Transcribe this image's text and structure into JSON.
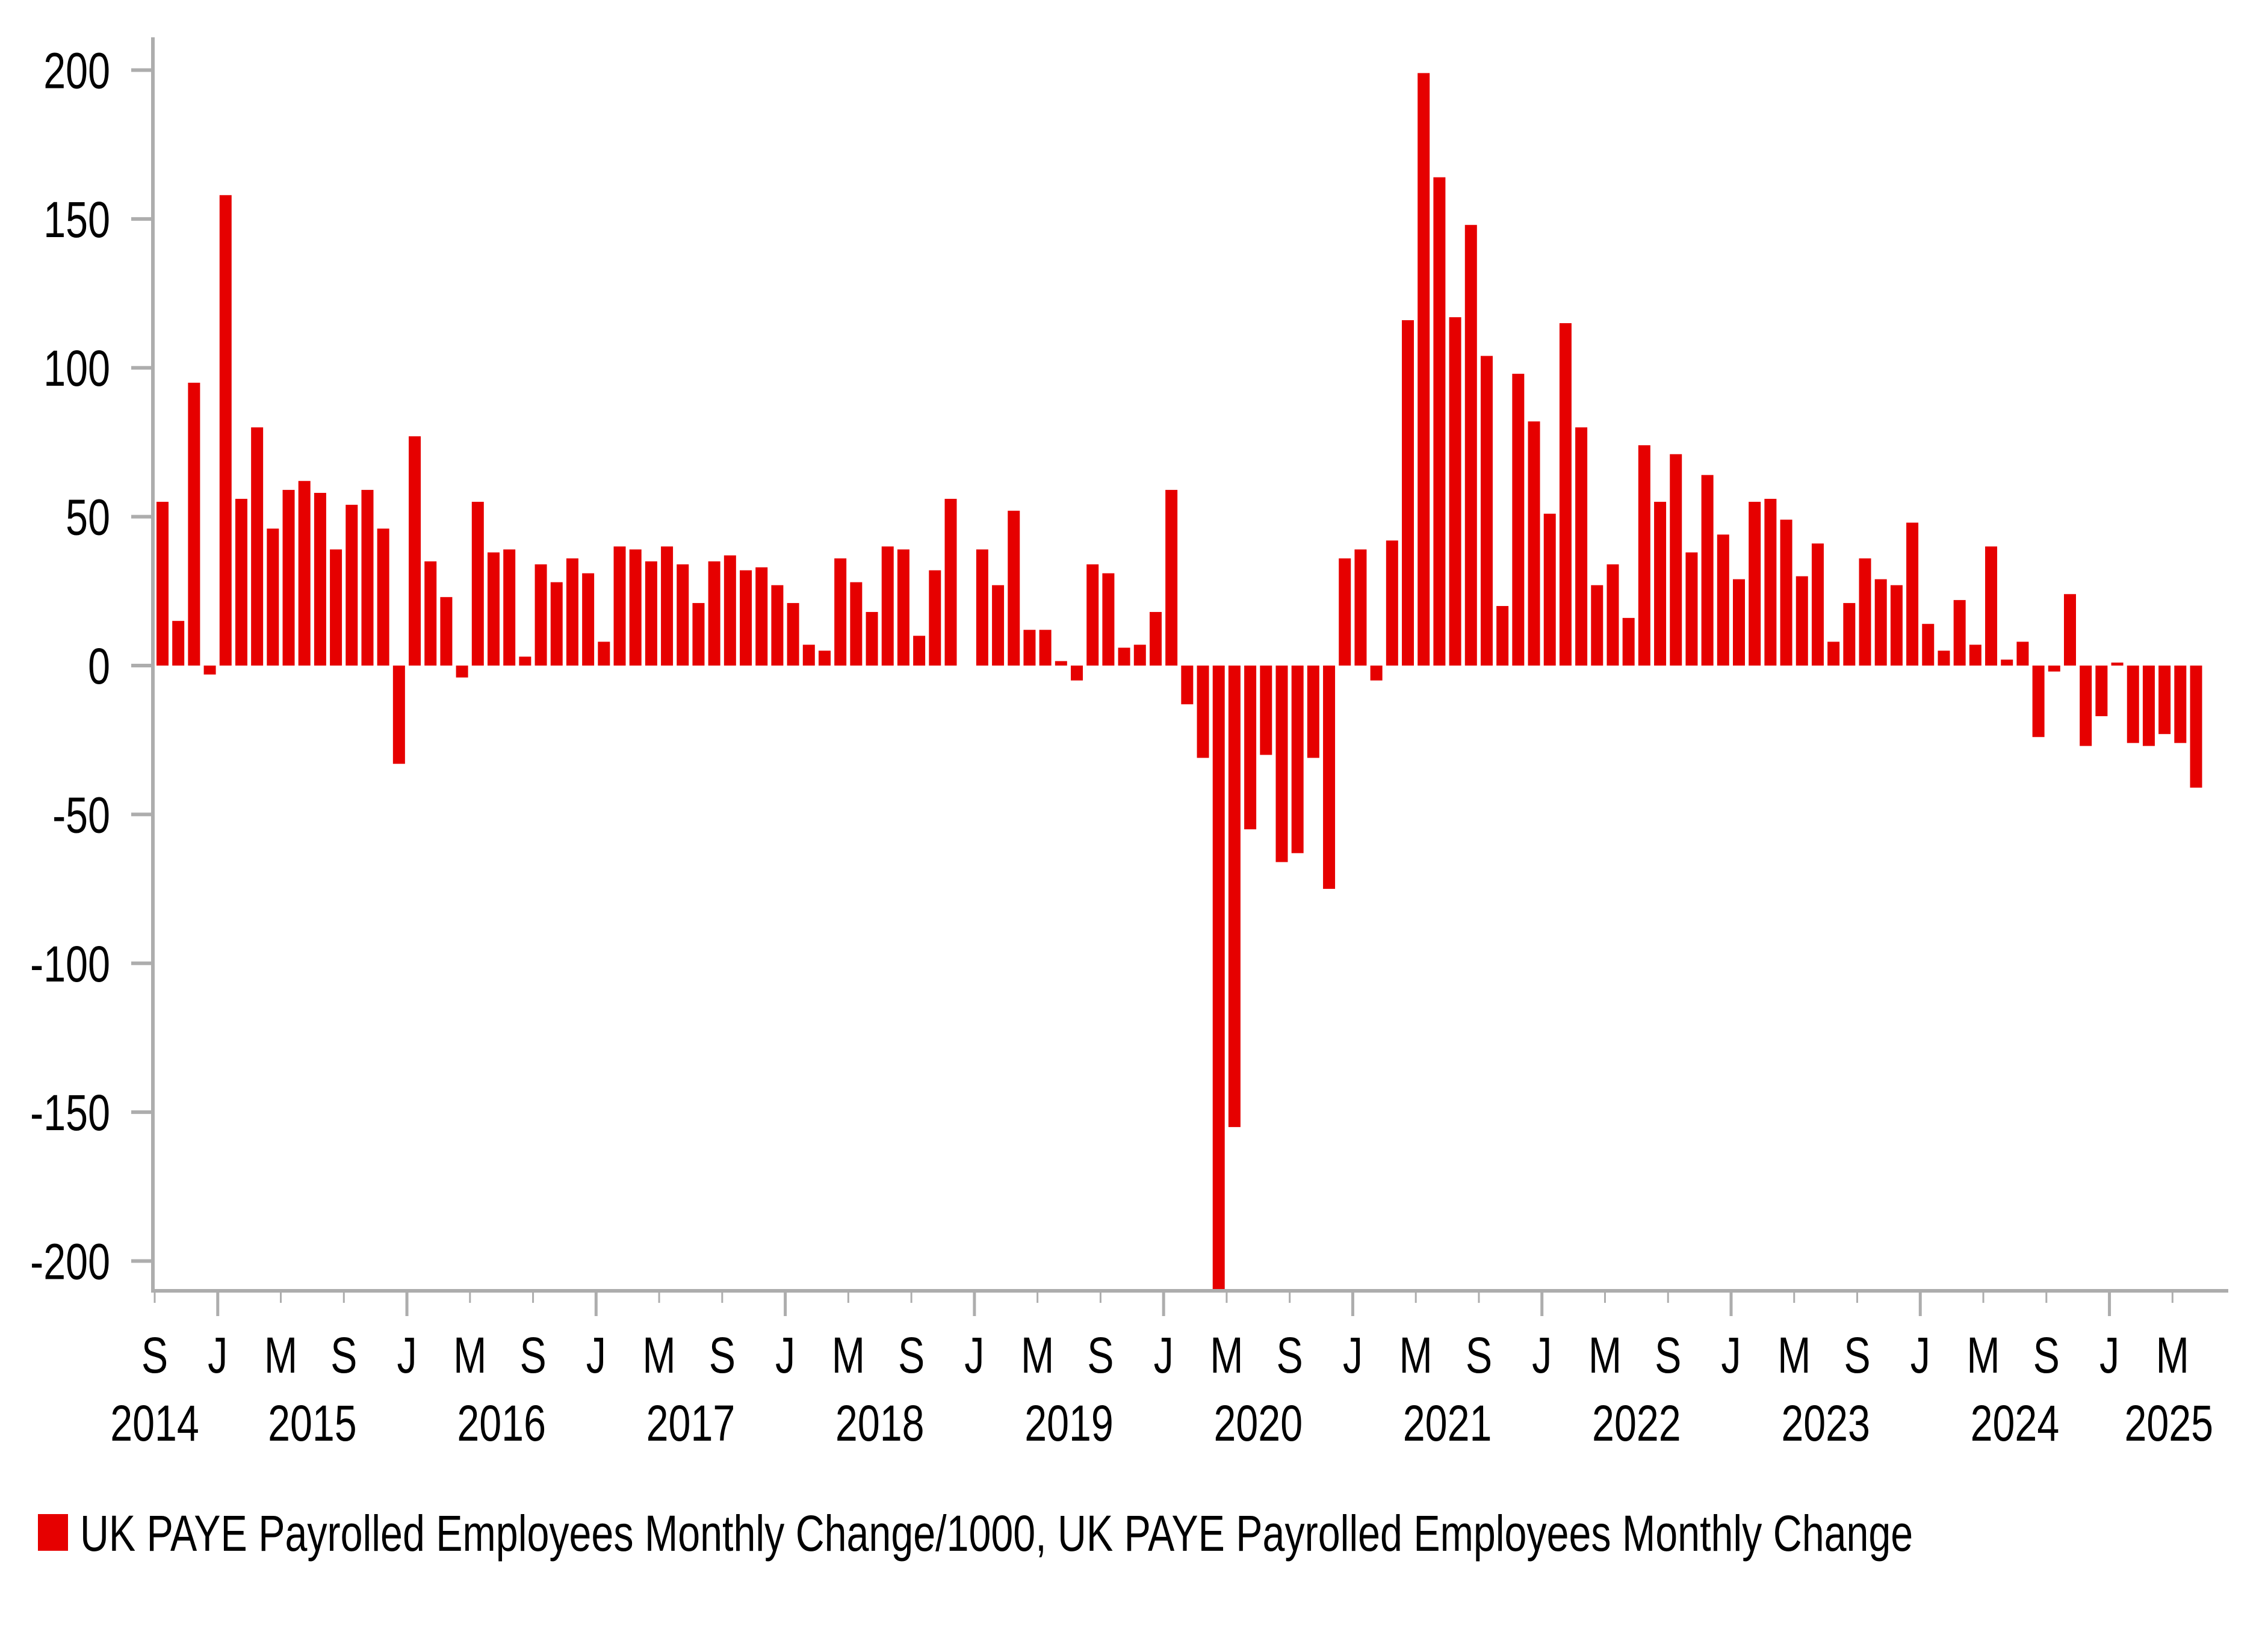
{
  "chart_data": {
    "type": "bar",
    "title": "",
    "xlabel": "",
    "ylabel": "",
    "x_start": "2014-09",
    "x_frequency": "monthly",
    "x_end": "2025-06",
    "ylim": [
      -210,
      210
    ],
    "yticks": [
      200,
      150,
      100,
      50,
      0,
      -50,
      -100,
      -150,
      -200
    ],
    "ytick_labels": [
      "200",
      "150",
      "100",
      "50",
      "0",
      "-50",
      "-100",
      "-150",
      "-200"
    ],
    "xtick_labels": [
      "S",
      "J",
      "M",
      "S",
      "J",
      "M",
      "S",
      "J",
      "M",
      "S",
      "J",
      "M",
      "S",
      "J",
      "M",
      "S",
      "J",
      "M",
      "S",
      "J",
      "M",
      "S",
      "J",
      "M",
      "S",
      "J",
      "M",
      "S",
      "J",
      "M",
      "S",
      "J",
      "M"
    ],
    "year_labels": [
      "2014",
      "2015",
      "2016",
      "2017",
      "2018",
      "2019",
      "2020",
      "2021",
      "2022",
      "2023",
      "2024",
      "2025"
    ],
    "grid": false,
    "legend_position": "bottom-left",
    "series": [
      {
        "name": "UK PAYE Payrolled Employees Monthly Change/1000, UK PAYE Payrolled Employees Monthly Change",
        "color": "#e60000",
        "values": [
          55,
          15,
          95,
          -3,
          158,
          56,
          80,
          46,
          59,
          62,
          58,
          39,
          54,
          59,
          46,
          -33,
          77,
          35,
          23,
          -4,
          55,
          38,
          39,
          3,
          34,
          28,
          36,
          31,
          8,
          40,
          39,
          35,
          40,
          34,
          21,
          35,
          37,
          32,
          33,
          27,
          21,
          7,
          5,
          36,
          28,
          18,
          40,
          39,
          10,
          32,
          56,
          0,
          39,
          27,
          52,
          12,
          12,
          1.5,
          -5,
          34,
          31,
          6,
          7,
          18,
          59,
          -13,
          -31,
          -210,
          -155,
          -55,
          -30,
          -66,
          -63,
          -31,
          -75,
          36,
          39,
          -5,
          42,
          116,
          199,
          164,
          117,
          148,
          104,
          20,
          98,
          82,
          51,
          115,
          80,
          27,
          34,
          16,
          74,
          55,
          71,
          38,
          64,
          44,
          29,
          55,
          56,
          49,
          30,
          41,
          8,
          21,
          36,
          29,
          27,
          48,
          14,
          5,
          22,
          7,
          40,
          2,
          8,
          -24,
          -2,
          24,
          -27,
          -17,
          1,
          -26,
          -27,
          -23,
          -26,
          -41
        ]
      }
    ],
    "axis_color": "#adadad"
  }
}
